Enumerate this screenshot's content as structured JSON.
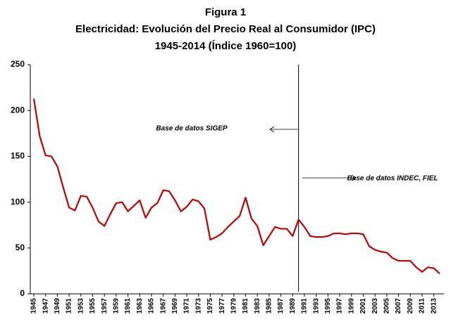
{
  "chart_data": {
    "type": "line",
    "title": [
      "Figura 1",
      "Electricidad: Evolución del Precio Real al Consumidor (IPC)",
      "1945-2014 (Índice 1960=100)"
    ],
    "x": [
      1945,
      1946,
      1947,
      1948,
      1949,
      1950,
      1951,
      1952,
      1953,
      1954,
      1955,
      1956,
      1957,
      1958,
      1959,
      1960,
      1961,
      1962,
      1963,
      1964,
      1965,
      1966,
      1967,
      1968,
      1969,
      1970,
      1971,
      1972,
      1973,
      1974,
      1975,
      1976,
      1977,
      1978,
      1979,
      1980,
      1981,
      1982,
      1983,
      1984,
      1985,
      1986,
      1987,
      1988,
      1989,
      1990,
      1991,
      1992,
      1993,
      1994,
      1995,
      1996,
      1997,
      1998,
      1999,
      2000,
      2001,
      2002,
      2003,
      2004,
      2005,
      2006,
      2007,
      2008,
      2009,
      2010,
      2011,
      2012,
      2013,
      2014
    ],
    "values": [
      213,
      172,
      151,
      150,
      139,
      116,
      94,
      91,
      107,
      106,
      94,
      79,
      74,
      87,
      99,
      100,
      90,
      96,
      102,
      83,
      94,
      99,
      113,
      112,
      102,
      90,
      95,
      103,
      101,
      93,
      59,
      62,
      66,
      73,
      79,
      85,
      105,
      82,
      74,
      53,
      63,
      73,
      71,
      71,
      63,
      81,
      73,
      63,
      62,
      62,
      63,
      66,
      66,
      65,
      66,
      66,
      65,
      52,
      48,
      46,
      45,
      39,
      36,
      36,
      36,
      29,
      24,
      29,
      28,
      22
    ],
    "color": "#c00000",
    "xlim": [
      1945,
      2014
    ],
    "xticks": [
      1945,
      1947,
      1949,
      1951,
      1953,
      1955,
      1957,
      1959,
      1961,
      1963,
      1965,
      1967,
      1969,
      1971,
      1973,
      1975,
      1977,
      1979,
      1981,
      1983,
      1985,
      1987,
      1989,
      1991,
      1993,
      1995,
      1997,
      1999,
      2001,
      2003,
      2005,
      2007,
      2009,
      2011,
      2013
    ],
    "ylim": [
      0,
      250
    ],
    "yticks": [
      0,
      50,
      100,
      150,
      200,
      250
    ],
    "grid": false,
    "vline": 1990,
    "annotations": [
      "Base de datos SIGEP",
      "Base de datos INDEC, FIEL"
    ]
  }
}
